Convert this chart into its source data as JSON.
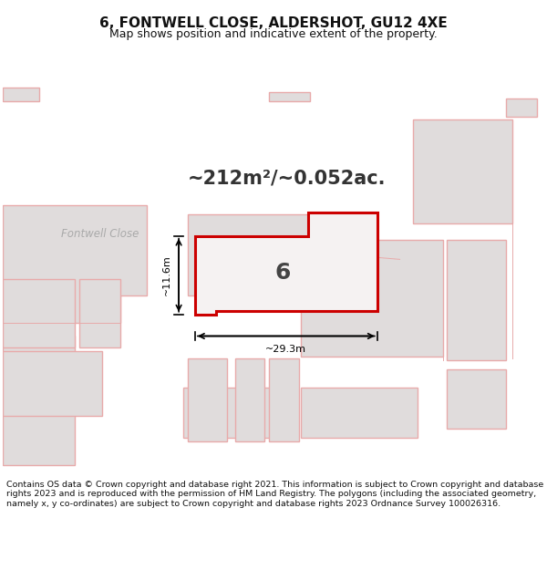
{
  "title": "6, FONTWELL CLOSE, ALDERSHOT, GU12 4XE",
  "subtitle": "Map shows position and indicative extent of the property.",
  "area_text": "~212m²/~0.052ac.",
  "width_label": "~29.3m",
  "height_label": "~11.6m",
  "plot_number": "6",
  "street_label": "Fontwell Close",
  "footer_text": "Contains OS data © Crown copyright and database right 2021. This information is subject to Crown copyright and database rights 2023 and is reproduced with the permission of HM Land Registry. The polygons (including the associated geometry, namely x, y co-ordinates) are subject to Crown copyright and database rights 2023 Ordnance Survey 100026316.",
  "map_bg": "#f2efef",
  "building_fill": "#e0dcdc",
  "building_edge": "#e8aaaa",
  "road_fill": "#ffffff",
  "property_fill": "#f5f2f2",
  "property_stroke": "#cc0000",
  "text_dark": "#333333",
  "text_street": "#999999",
  "footer_text_color": "#111111",
  "white": "#ffffff"
}
